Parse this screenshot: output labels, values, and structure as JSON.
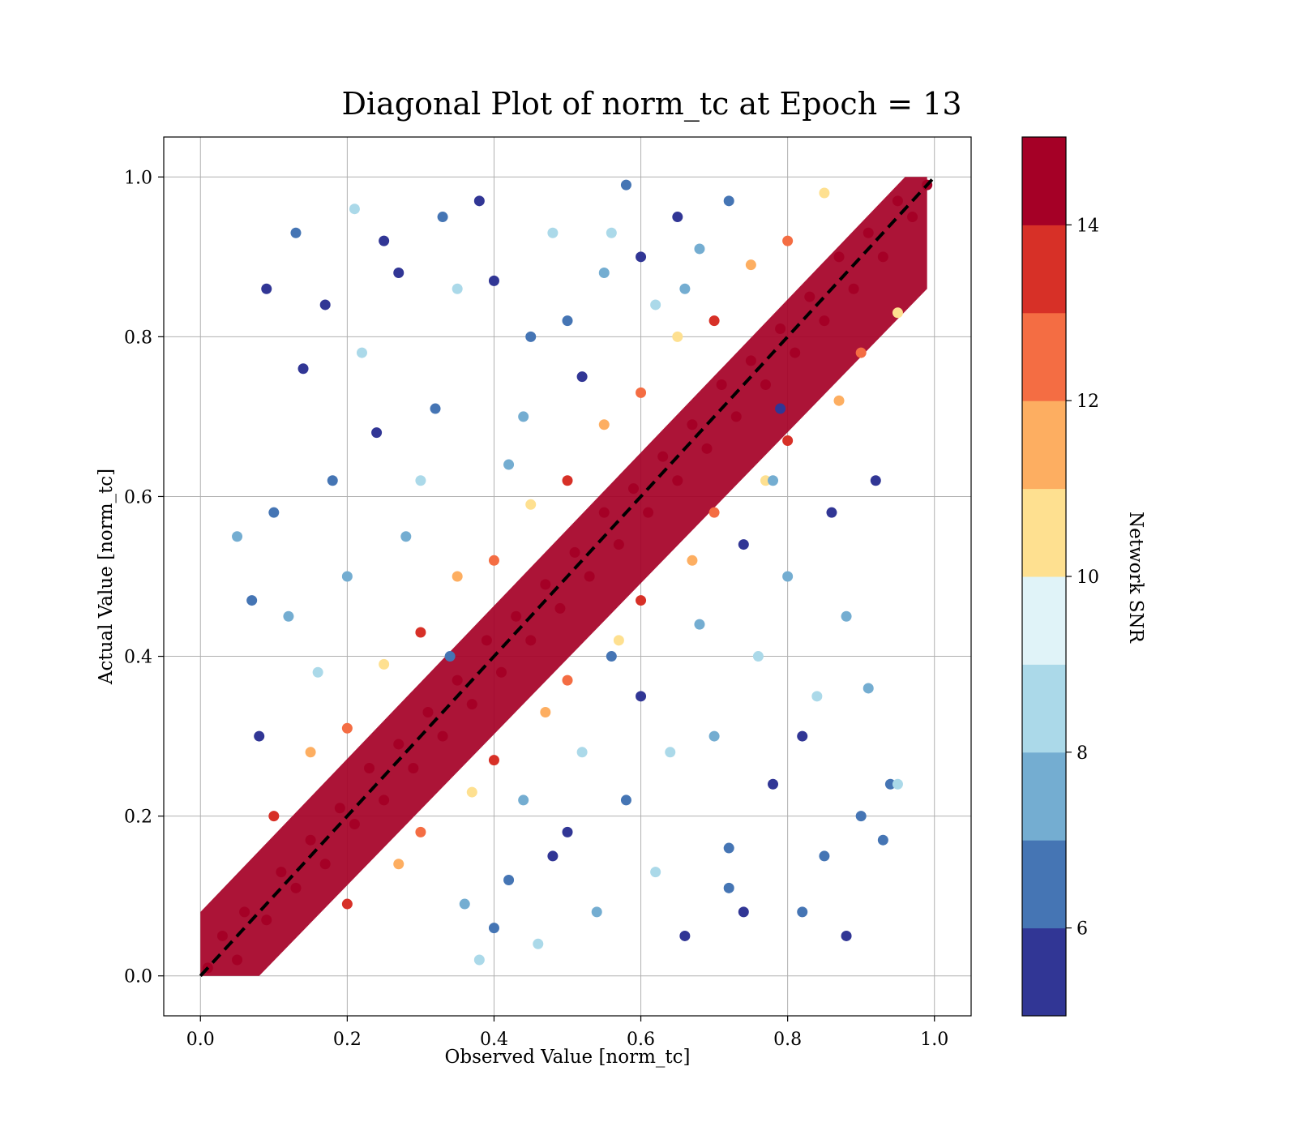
{
  "chart_data": {
    "type": "scatter",
    "title": "Diagonal Plot of norm_tc at Epoch = 13",
    "xlabel": "Observed Value [norm_tc]",
    "ylabel": "Actual Value [norm_tc]",
    "xlim": [
      -0.05,
      1.05
    ],
    "ylim": [
      -0.05,
      1.05
    ],
    "xticks": [
      0.0,
      0.2,
      0.4,
      0.6,
      0.8,
      1.0
    ],
    "yticks": [
      0.0,
      0.2,
      0.4,
      0.6,
      0.8,
      1.0
    ],
    "xtick_labels": [
      "0.0",
      "0.2",
      "0.4",
      "0.6",
      "0.8",
      "1.0"
    ],
    "ytick_labels": [
      "0.0",
      "0.2",
      "0.4",
      "0.6",
      "0.8",
      "1.0"
    ],
    "grid": true,
    "reference_line": {
      "x": [
        0,
        1
      ],
      "y": [
        0,
        1
      ],
      "style": "dashed",
      "color": "#000000"
    },
    "colorbar": {
      "label": "Network SNR",
      "range": [
        5,
        15
      ],
      "ticks": [
        6,
        8,
        10,
        12,
        14
      ],
      "tick_labels": [
        "6",
        "8",
        "10",
        "12",
        "14"
      ],
      "colors": [
        "#313695",
        "#4575b4",
        "#74add1",
        "#abd9e9",
        "#e0f3f8",
        "#fee090",
        "#fdae61",
        "#f46d43",
        "#d73027",
        "#a50026"
      ]
    },
    "points": [
      [
        0.01,
        0.01,
        15
      ],
      [
        0.03,
        0.05,
        14.5
      ],
      [
        0.05,
        0.02,
        15
      ],
      [
        0.06,
        0.08,
        14.6
      ],
      [
        0.09,
        0.07,
        15
      ],
      [
        0.11,
        0.13,
        14.8
      ],
      [
        0.13,
        0.11,
        15
      ],
      [
        0.15,
        0.17,
        14.4
      ],
      [
        0.17,
        0.14,
        15
      ],
      [
        0.19,
        0.21,
        14.9
      ],
      [
        0.21,
        0.19,
        15
      ],
      [
        0.23,
        0.26,
        14.5
      ],
      [
        0.25,
        0.22,
        15
      ],
      [
        0.27,
        0.29,
        14.7
      ],
      [
        0.29,
        0.26,
        15
      ],
      [
        0.31,
        0.33,
        14.6
      ],
      [
        0.33,
        0.3,
        15
      ],
      [
        0.35,
        0.37,
        14.8
      ],
      [
        0.37,
        0.34,
        15
      ],
      [
        0.39,
        0.42,
        14.5
      ],
      [
        0.41,
        0.38,
        15
      ],
      [
        0.43,
        0.45,
        14.9
      ],
      [
        0.45,
        0.42,
        15
      ],
      [
        0.47,
        0.49,
        14.4
      ],
      [
        0.49,
        0.46,
        15
      ],
      [
        0.51,
        0.53,
        14.7
      ],
      [
        0.53,
        0.5,
        15
      ],
      [
        0.55,
        0.58,
        14.6
      ],
      [
        0.57,
        0.54,
        15
      ],
      [
        0.59,
        0.61,
        14.8
      ],
      [
        0.61,
        0.58,
        15
      ],
      [
        0.63,
        0.65,
        14.5
      ],
      [
        0.65,
        0.62,
        15
      ],
      [
        0.67,
        0.69,
        14.9
      ],
      [
        0.69,
        0.66,
        15
      ],
      [
        0.71,
        0.74,
        14.6
      ],
      [
        0.73,
        0.7,
        15
      ],
      [
        0.75,
        0.77,
        14.7
      ],
      [
        0.77,
        0.74,
        15
      ],
      [
        0.79,
        0.81,
        14.5
      ],
      [
        0.81,
        0.78,
        15
      ],
      [
        0.83,
        0.85,
        14.8
      ],
      [
        0.85,
        0.82,
        15
      ],
      [
        0.87,
        0.9,
        14.4
      ],
      [
        0.89,
        0.86,
        15
      ],
      [
        0.91,
        0.93,
        14.9
      ],
      [
        0.93,
        0.9,
        15
      ],
      [
        0.95,
        0.97,
        14.6
      ],
      [
        0.97,
        0.95,
        15
      ],
      [
        0.99,
        0.99,
        14.7
      ],
      [
        0.1,
        0.2,
        13.2
      ],
      [
        0.2,
        0.31,
        12.5
      ],
      [
        0.3,
        0.43,
        13.5
      ],
      [
        0.4,
        0.52,
        12.8
      ],
      [
        0.5,
        0.62,
        13.1
      ],
      [
        0.6,
        0.73,
        12.3
      ],
      [
        0.7,
        0.82,
        13.4
      ],
      [
        0.8,
        0.92,
        12.7
      ],
      [
        0.2,
        0.09,
        13.3
      ],
      [
        0.3,
        0.18,
        12.6
      ],
      [
        0.4,
        0.27,
        13.2
      ],
      [
        0.5,
        0.37,
        12.9
      ],
      [
        0.6,
        0.47,
        13.6
      ],
      [
        0.7,
        0.58,
        12.4
      ],
      [
        0.8,
        0.67,
        13.0
      ],
      [
        0.9,
        0.78,
        12.8
      ],
      [
        0.15,
        0.28,
        11.0
      ],
      [
        0.25,
        0.39,
        10.5
      ],
      [
        0.35,
        0.5,
        11.3
      ],
      [
        0.45,
        0.59,
        10.2
      ],
      [
        0.55,
        0.69,
        11.6
      ],
      [
        0.65,
        0.8,
        10.8
      ],
      [
        0.75,
        0.89,
        11.1
      ],
      [
        0.85,
        0.98,
        10.4
      ],
      [
        0.27,
        0.14,
        11.2
      ],
      [
        0.37,
        0.23,
        10.6
      ],
      [
        0.47,
        0.33,
        11.5
      ],
      [
        0.57,
        0.42,
        10.3
      ],
      [
        0.67,
        0.52,
        11.7
      ],
      [
        0.77,
        0.62,
        10.9
      ],
      [
        0.87,
        0.72,
        11.0
      ],
      [
        0.95,
        0.83,
        10.5
      ],
      [
        0.12,
        0.45,
        7.4
      ],
      [
        0.18,
        0.62,
        6.2
      ],
      [
        0.22,
        0.78,
        8.3
      ],
      [
        0.25,
        0.92,
        5.5
      ],
      [
        0.28,
        0.55,
        7.8
      ],
      [
        0.32,
        0.71,
        6.6
      ],
      [
        0.35,
        0.86,
        8.7
      ],
      [
        0.38,
        0.97,
        5.8
      ],
      [
        0.42,
        0.64,
        7.2
      ],
      [
        0.45,
        0.8,
        6.1
      ],
      [
        0.48,
        0.93,
        8.4
      ],
      [
        0.52,
        0.75,
        5.6
      ],
      [
        0.55,
        0.88,
        7.6
      ],
      [
        0.58,
        0.99,
        6.3
      ],
      [
        0.62,
        0.84,
        8.1
      ],
      [
        0.65,
        0.95,
        5.9
      ],
      [
        0.68,
        0.91,
        7.5
      ],
      [
        0.72,
        0.97,
        6.4
      ],
      [
        0.08,
        0.3,
        5.7
      ],
      [
        0.1,
        0.58,
        6.8
      ],
      [
        0.14,
        0.76,
        5.4
      ],
      [
        0.16,
        0.38,
        8.6
      ],
      [
        0.2,
        0.5,
        7.1
      ],
      [
        0.24,
        0.68,
        5.3
      ],
      [
        0.3,
        0.62,
        8.8
      ],
      [
        0.34,
        0.4,
        6.9
      ],
      [
        0.4,
        0.87,
        5.2
      ],
      [
        0.44,
        0.7,
        7.7
      ],
      [
        0.5,
        0.82,
        6.5
      ],
      [
        0.56,
        0.93,
        8.2
      ],
      [
        0.6,
        0.9,
        5.5
      ],
      [
        0.66,
        0.86,
        7.3
      ],
      [
        0.09,
        0.86,
        5.4
      ],
      [
        0.13,
        0.93,
        6.2
      ],
      [
        0.17,
        0.84,
        5.8
      ],
      [
        0.05,
        0.55,
        7.9
      ],
      [
        0.07,
        0.47,
        6.1
      ],
      [
        0.21,
        0.96,
        8.5
      ],
      [
        0.27,
        0.88,
        5.6
      ],
      [
        0.33,
        0.95,
        6.7
      ],
      [
        0.36,
        0.09,
        7.4
      ],
      [
        0.42,
        0.12,
        6.2
      ],
      [
        0.46,
        0.04,
        8.3
      ],
      [
        0.5,
        0.18,
        5.5
      ],
      [
        0.54,
        0.08,
        7.8
      ],
      [
        0.58,
        0.22,
        6.6
      ],
      [
        0.62,
        0.13,
        8.7
      ],
      [
        0.66,
        0.05,
        5.8
      ],
      [
        0.7,
        0.3,
        7.2
      ],
      [
        0.72,
        0.16,
        6.1
      ],
      [
        0.76,
        0.4,
        8.4
      ],
      [
        0.78,
        0.24,
        5.6
      ],
      [
        0.8,
        0.5,
        7.6
      ],
      [
        0.82,
        0.08,
        6.3
      ],
      [
        0.84,
        0.35,
        8.1
      ],
      [
        0.86,
        0.58,
        5.9
      ],
      [
        0.88,
        0.45,
        7.5
      ],
      [
        0.9,
        0.2,
        6.4
      ],
      [
        0.92,
        0.62,
        5.7
      ],
      [
        0.94,
        0.24,
        6.8
      ],
      [
        0.6,
        0.35,
        5.4
      ],
      [
        0.64,
        0.28,
        8.6
      ],
      [
        0.68,
        0.44,
        7.1
      ],
      [
        0.74,
        0.54,
        5.3
      ],
      [
        0.52,
        0.28,
        8.8
      ],
      [
        0.56,
        0.4,
        6.9
      ],
      [
        0.48,
        0.15,
        5.2
      ],
      [
        0.44,
        0.22,
        7.7
      ],
      [
        0.4,
        0.06,
        6.5
      ],
      [
        0.38,
        0.02,
        8.2
      ],
      [
        0.74,
        0.08,
        5.5
      ],
      [
        0.78,
        0.62,
        7.3
      ],
      [
        0.82,
        0.3,
        5.4
      ],
      [
        0.85,
        0.15,
        6.2
      ],
      [
        0.88,
        0.05,
        5.8
      ],
      [
        0.91,
        0.36,
        7.9
      ],
      [
        0.93,
        0.17,
        6.1
      ],
      [
        0.95,
        0.24,
        8.5
      ],
      [
        0.79,
        0.71,
        5.6
      ],
      [
        0.72,
        0.11,
        6.7
      ]
    ]
  }
}
